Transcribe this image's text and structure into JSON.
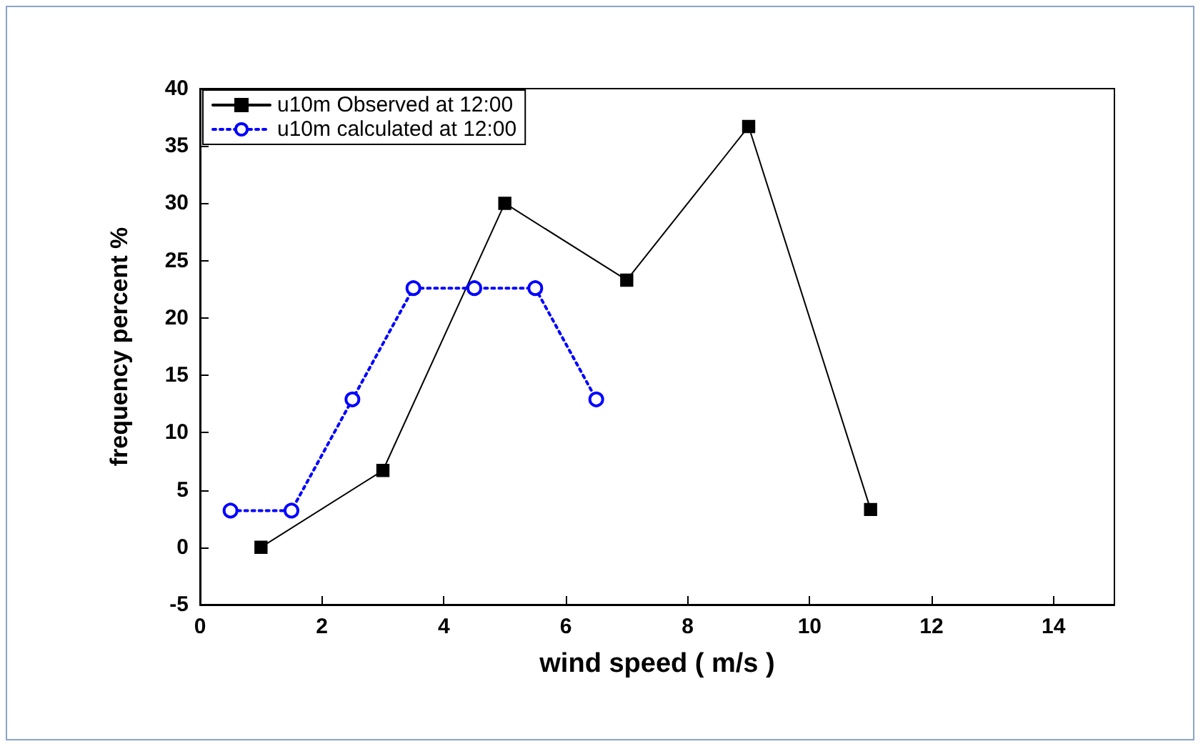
{
  "chart_data": {
    "type": "line",
    "xlabel": "wind speed ( m/s )",
    "ylabel": "frequency percent %",
    "xlim": [
      0,
      15
    ],
    "xticks": [
      0,
      2,
      4,
      6,
      8,
      10,
      12,
      14
    ],
    "ylim": [
      -5,
      40
    ],
    "yticks": [
      -5,
      0,
      5,
      10,
      15,
      20,
      25,
      30,
      35,
      40
    ],
    "grid": false,
    "legend": "top left",
    "series": [
      {
        "name": "u10m Observed at 12:00",
        "color": "#000000",
        "marker": "square",
        "line_style": "solid",
        "x": [
          1,
          3,
          5,
          7,
          9,
          11
        ],
        "values": [
          0,
          6.7,
          30,
          23.3,
          36.7,
          3.3
        ]
      },
      {
        "name": "u10m calculated at 12:00",
        "color": "#0000ff",
        "marker": "circle",
        "line_style": "dotted",
        "x": [
          0.5,
          1.5,
          2.5,
          3.5,
          4.5,
          5.5,
          6.5
        ],
        "values": [
          3.2,
          3.2,
          12.9,
          22.6,
          22.6,
          22.6,
          12.9
        ]
      }
    ]
  }
}
